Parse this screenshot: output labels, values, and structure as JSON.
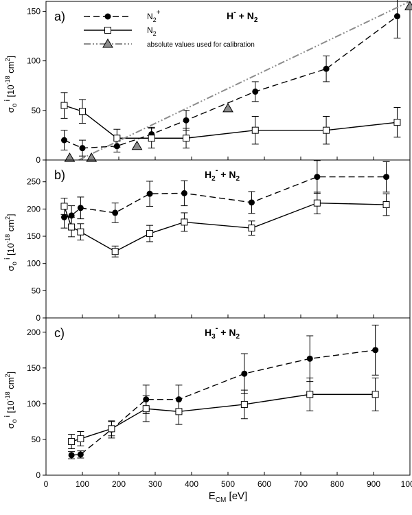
{
  "chart_data": [
    {
      "type": "line",
      "panel_label": "a)",
      "title": "H⁻ + N₂",
      "title_parts": {
        "base": "H",
        "sup": "-",
        "mid": " + N",
        "sub": "2"
      },
      "ylabel": "σo i [10-18 cm2]",
      "ylim": [
        0,
        160
      ],
      "yticks": [
        0,
        50,
        100,
        150
      ],
      "legend": [
        {
          "series": "N2+",
          "label_base": "N",
          "label_sub": "2",
          "label_sup": "+"
        },
        {
          "series": "N2",
          "label_base": "N",
          "label_sub": "2",
          "label_sup": ""
        },
        {
          "series": "calibration",
          "label_base": "absolute values used for calibration",
          "label_sub": "",
          "label_sup": ""
        }
      ],
      "series": [
        {
          "name": "N2+",
          "style": "dashed",
          "marker": "filled-circle",
          "x": [
            50,
            100,
            195,
            290,
            385,
            575,
            770,
            965
          ],
          "y": [
            20,
            12,
            14,
            26,
            40,
            69,
            92,
            145
          ],
          "err": [
            10,
            8,
            6,
            7,
            10,
            10,
            13,
            22
          ]
        },
        {
          "name": "N2",
          "style": "solid",
          "marker": "open-square",
          "x": [
            50,
            100,
            195,
            290,
            385,
            575,
            770,
            965
          ],
          "y": [
            55,
            49,
            22,
            22,
            22,
            30,
            30,
            38
          ],
          "err": [
            13,
            12,
            9,
            10,
            10,
            14,
            14,
            15
          ]
        },
        {
          "name": "calibration",
          "style": "dashdotdot",
          "marker": "gray-triangle",
          "x": [
            65,
            125,
            250,
            500,
            1000
          ],
          "y": [
            2,
            2,
            14,
            52,
            155
          ],
          "err": []
        }
      ]
    },
    {
      "type": "line",
      "panel_label": "b)",
      "title": "H₂⁻ + N₂",
      "title_parts": {
        "base": "H",
        "sub1": "2",
        "sup": "-",
        "mid": " + N",
        "sub": "2"
      },
      "ylabel": "σo i [10-18 cm2]",
      "ylim": [
        0,
        290
      ],
      "yticks": [
        0,
        50,
        100,
        150,
        200,
        250
      ],
      "series": [
        {
          "name": "N2+",
          "style": "dashed",
          "marker": "filled-circle",
          "x": [
            50,
            70,
            95,
            190,
            285,
            380,
            565,
            745,
            935
          ],
          "y": [
            185,
            188,
            202,
            193,
            228,
            229,
            212,
            259,
            259
          ],
          "err": [
            20,
            18,
            20,
            18,
            23,
            23,
            20,
            30,
            28
          ]
        },
        {
          "name": "N2",
          "style": "solid",
          "marker": "open-square",
          "x": [
            50,
            70,
            95,
            190,
            285,
            380,
            565,
            745,
            935
          ],
          "y": [
            205,
            167,
            158,
            122,
            155,
            176,
            165,
            211,
            208
          ],
          "err": [
            15,
            18,
            15,
            10,
            15,
            17,
            13,
            20,
            20
          ]
        }
      ]
    },
    {
      "type": "line",
      "panel_label": "c)",
      "title": "H₃⁻ + N₂",
      "title_parts": {
        "base": "H",
        "sub1": "3",
        "sup": "-",
        "mid": " + N",
        "sub": "2"
      },
      "ylabel": "σo i [10-18 cm2]",
      "ylim": [
        0,
        220
      ],
      "yticks": [
        0,
        50,
        100,
        150,
        200
      ],
      "series": [
        {
          "name": "N2+",
          "style": "dashed",
          "marker": "filled-circle",
          "x": [
            70,
            95,
            180,
            275,
            365,
            545,
            725,
            905
          ],
          "y": [
            28,
            29,
            64,
            106,
            106,
            142,
            163,
            175
          ],
          "err": [
            5,
            5,
            12,
            20,
            20,
            28,
            32,
            35
          ]
        },
        {
          "name": "N2",
          "style": "solid",
          "marker": "open-square",
          "x": [
            70,
            95,
            180,
            275,
            365,
            545,
            725,
            905
          ],
          "y": [
            47,
            51,
            65,
            93,
            89,
            99,
            113,
            113
          ],
          "err": [
            10,
            10,
            10,
            18,
            18,
            20,
            23,
            23
          ]
        }
      ]
    }
  ],
  "x_axis": {
    "label_base": "E",
    "label_sub": "CM",
    "label_unit": " [eV]",
    "xlim": [
      0,
      1000
    ],
    "ticks": [
      0,
      100,
      200,
      300,
      400,
      500,
      600,
      700,
      800,
      900,
      1000
    ]
  }
}
